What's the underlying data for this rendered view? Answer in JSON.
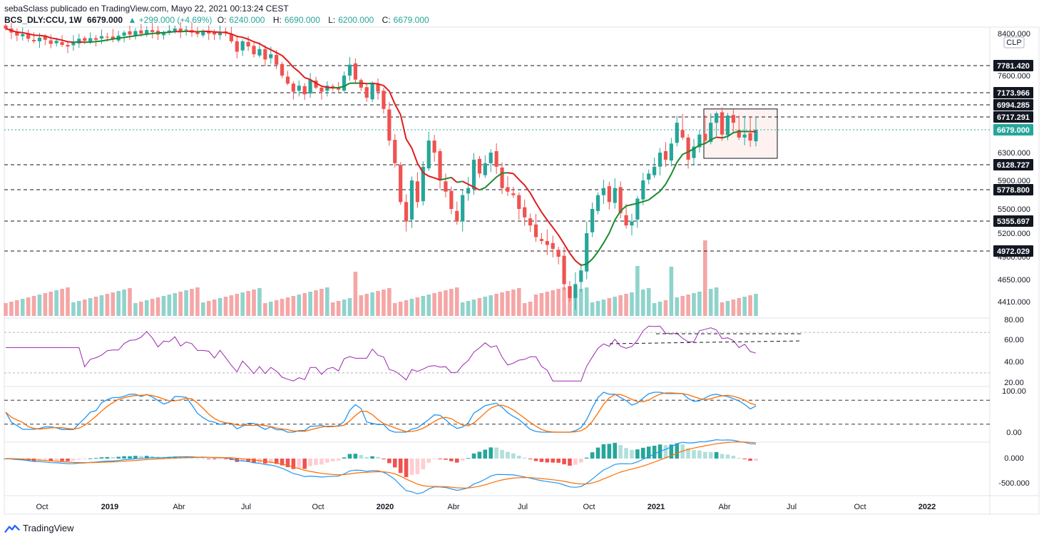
{
  "header": {
    "publish_line": "sebaSclass publicado en TradingView.com, Mayo 22, 2021 00:13:24 CEST",
    "symbol": "BCS_DLY:CCU, 1W",
    "last": "6679.000",
    "change": "▲ +299.000 (+4.69%)",
    "o_label": "O:",
    "o": "6240.000",
    "h_label": "H:",
    "h": "6690.000",
    "l_label": "L:",
    "l": "6200.000",
    "c_label": "C:",
    "c": "6679.000"
  },
  "footer": {
    "brand": "TradingView"
  },
  "colors": {
    "up": "#26a69a",
    "down": "#ef5350",
    "vol_up": "#8fd3cc",
    "vol_down": "#f5a6a6",
    "rsi": "#9c27b0",
    "stoch_k": "#2196f3",
    "stoch_d": "#ff6d00",
    "ma_up": "#1b8a2e",
    "ma_down": "#e01b1b",
    "accent": "#26a69a"
  },
  "chart_data": {
    "type": "candlestick",
    "symbol": "BCS_DLY:CCU",
    "interval": "1W",
    "currency": "CLP",
    "price_axis_ticks": [
      "8400.000",
      "7600.000",
      "6300.000",
      "5900.000",
      "5500.000",
      "5200.000",
      "4900.000",
      "4650.000",
      "4410.000"
    ],
    "x_axis_labels": [
      "Oct",
      "2019",
      "Abr",
      "Jul",
      "Oct",
      "2020",
      "Abr",
      "Jul",
      "Oct",
      "2021",
      "Abr",
      "Jul",
      "Oct",
      "2022"
    ],
    "horizontal_levels": [
      {
        "value": 7781.42,
        "label": "7781.420"
      },
      {
        "value": 7173.966,
        "label": "7173.966"
      },
      {
        "value": 6994.285,
        "label": "6994.285"
      },
      {
        "value": 6717.291,
        "label": "6717.291"
      },
      {
        "value": 6679.0,
        "label": "6679.000",
        "current": true
      },
      {
        "value": 6128.727,
        "label": "6128.727"
      },
      {
        "value": 5778.8,
        "label": "5778.800"
      },
      {
        "value": 5355.697,
        "label": "5355.697"
      },
      {
        "value": 4972.029,
        "label": "4972.029"
      }
    ],
    "range_box": {
      "from": "2021-03-22",
      "to": "2021-06-07",
      "top": 6900,
      "bottom": 6300
    },
    "closes": [
      8500,
      8420,
      8360,
      8390,
      8300,
      8250,
      8320,
      8280,
      8200,
      8260,
      8180,
      8150,
      8220,
      8300,
      8260,
      8310,
      8280,
      8350,
      8330,
      8290,
      8360,
      8420,
      8380,
      8450,
      8400,
      8470,
      8430,
      8380,
      8420,
      8460,
      8500,
      8440,
      8480,
      8420,
      8390,
      8450,
      8400,
      8380,
      8430,
      8410,
      8250,
      8050,
      8250,
      8150,
      8000,
      8100,
      7900,
      8000,
      7800,
      7600,
      7400,
      7200,
      7350,
      7150,
      7500,
      7300,
      7200,
      7350,
      7300,
      7250,
      7600,
      7800,
      7500,
      7300,
      7100,
      7400,
      7200,
      6900,
      6500,
      6150,
      5600,
      5350,
      5900,
      5600,
      6100,
      6500,
      6300,
      5900,
      5750,
      5500,
      5350,
      5700,
      5800,
      6200,
      6000,
      6150,
      6300,
      6100,
      5800,
      5750,
      5700,
      5500,
      5400,
      5300,
      5150,
      5100,
      5050,
      5000,
      4900,
      4600,
      4450,
      4600,
      4750,
      5200,
      5500,
      5700,
      5800,
      5600,
      5800,
      5450,
      5300,
      5350,
      5650,
      5900,
      6000,
      6100,
      6300,
      6200,
      6450,
      6700,
      6550,
      6200,
      6400,
      6600,
      6500,
      6700,
      6800,
      6600,
      6750,
      6700,
      6550,
      6600,
      6500,
      6679
    ],
    "rsi": {
      "upper": 70,
      "lower": 30,
      "ticks": [
        "80.00",
        "60.00",
        "40.00",
        "20.00"
      ]
    },
    "stochastic": {
      "upper": 80,
      "lower": 20,
      "ticks": [
        "100.00",
        "0.00"
      ]
    },
    "macd": {
      "ticks": [
        "0.000",
        "-500.000"
      ]
    }
  }
}
